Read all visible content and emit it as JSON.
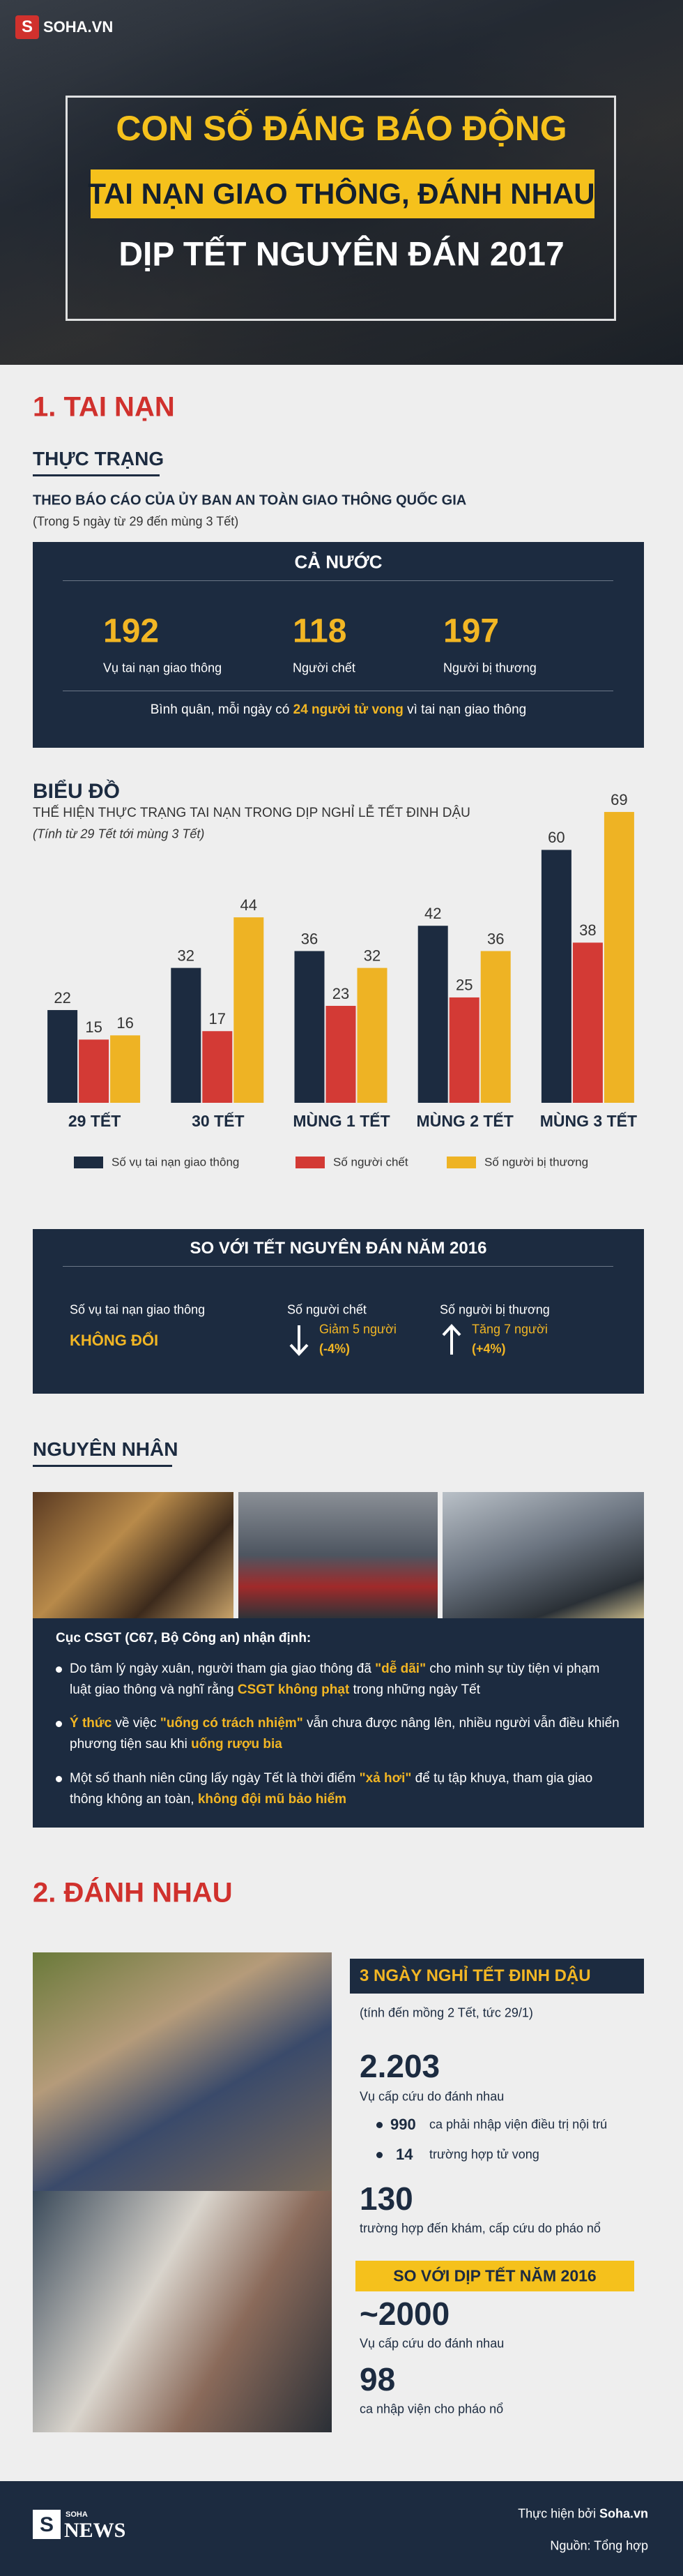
{
  "header": {
    "logo_mark": "S",
    "logo": "SOHA.VN",
    "title": "CON SỐ ĐÁNG BÁO ĐỘNG",
    "subtitle_1": "TAI NẠN GIAO THÔNG, ĐÁNH NHAU",
    "subtitle_2": "DỊP TẾT NGUYÊN ĐÁN 2017"
  },
  "section_1": {
    "heading": "1. TAI NẠN",
    "status_heading": "THỰC TRẠNG",
    "source": "THEO BÁO CÁO CỦA ỦY BAN AN TOÀN GIAO THÔNG QUỐC GIA",
    "period": "(Trong 5 ngày từ 29 đến mùng 3 Tết)",
    "nationwide": {
      "title": "CẢ NƯỚC",
      "stats": [
        {
          "value": "192",
          "label": "Vụ tai nạn giao thông"
        },
        {
          "value": "118",
          "label": "Người chết"
        },
        {
          "value": "197",
          "label": "Người bị thương"
        }
      ],
      "note": [
        {
          "text": "Bình quân, mỗi ngày có "
        },
        {
          "text": "24 người tử vong",
          "highlight": true
        },
        {
          "text": " vì tai nạn giao thông"
        }
      ]
    },
    "comparison": {
      "title": "SO VỚI TẾT NGUYÊN ĐÁN NĂM 2016",
      "items": [
        {
          "label": "Số vụ tai nạn giao thông",
          "change": "KHÔNG ĐỔI"
        },
        {
          "label": "Số người chết",
          "direction": "down",
          "change": "Giảm 5 người",
          "percent": "(-4%)"
        },
        {
          "label": "Số người bị thương",
          "direction": "up",
          "change": "Tăng 7 người",
          "percent": "(+4%)"
        }
      ]
    },
    "causes": {
      "heading": "NGUYÊN NHÂN",
      "intro": "Cục CSGT (C67, Bộ Công an) nhận định:",
      "bullets": [
        [
          {
            "text": "Do tâm lý ngày xuân, người tham gia giao thông đã "
          },
          {
            "text": "\"dễ dãi\"",
            "highlight": true
          },
          {
            "text": " cho mình sự tùy tiện vi phạm luật giao thông và nghĩ rằng "
          },
          {
            "text": "CSGT không phạt",
            "highlight": true
          },
          {
            "text": " trong những ngày Tết"
          }
        ],
        [
          {
            "text": "Ý thức",
            "highlight": true
          },
          {
            "text": " về việc "
          },
          {
            "text": "\"uống có trách nhiệm\"",
            "highlight": true
          },
          {
            "text": " vẫn chưa được nâng lên, nhiều người vẫn điều khiển phương tiện sau khi "
          },
          {
            "text": "uống rượu bia",
            "highlight": true
          }
        ],
        [
          {
            "text": "Một số thanh niên cũng lấy ngày Tết là thời điểm "
          },
          {
            "text": "\"xả hơi\"",
            "highlight": true
          },
          {
            "text": " để tụ tập khuya, tham gia giao thông không an toàn, "
          },
          {
            "text": "không đội mũ bảo hiểm",
            "highlight": true
          }
        ]
      ]
    }
  },
  "chart_data": {
    "type": "bar",
    "title": "BIỂU ĐỒ",
    "subtitle": "THẾ HIỆN THỰC TRẠNG TAI NẠN TRONG DỊP NGHỈ LỄ TẾT ĐINH DẬU",
    "note": "(Tính từ 29 Tết tới mùng 3 Tết)",
    "categories": [
      "29 TẾT",
      "30 TẾT",
      "MÙNG 1 TẾT",
      "MÙNG 2 TẾT",
      "MÙNG 3 TẾT"
    ],
    "series": [
      {
        "name": "Số vụ tai nạn giao thông",
        "color": "#1c2b40",
        "values": [
          22,
          32,
          36,
          42,
          60
        ]
      },
      {
        "name": "Số người chết",
        "color": "#d33a35",
        "values": [
          15,
          17,
          23,
          25,
          38
        ]
      },
      {
        "name": "Số người bị thương",
        "color": "#eeb324",
        "values": [
          16,
          44,
          32,
          36,
          69
        ]
      }
    ],
    "ylim": [
      0,
      70
    ],
    "legend": "bottom"
  },
  "section_2": {
    "heading": "2. ĐÁNH NHAU",
    "period_title": "3 NGÀY NGHỈ TẾT ĐINH DẬU",
    "period_note": "(tính đến mồng 2 Tết, tức 29/1)",
    "fights": {
      "value": "2.203",
      "label": "Vụ cấp cứu do đánh nhau"
    },
    "breakdown": [
      {
        "value": "990",
        "label": "ca phải nhập viện điều trị nội trú"
      },
      {
        "value": "14",
        "label": "trường hợp tử vong"
      }
    ],
    "fireworks": {
      "value": "130",
      "label": "trường hợp đến khám, cấp cứu do pháo nổ"
    },
    "comparison_title": "SO VỚI DỊP TẾT NĂM 2016",
    "comparison": [
      {
        "value": "~2000",
        "label": "Vụ cấp cứu do đánh nhau"
      },
      {
        "value": "98",
        "label": "ca nhập viện cho pháo nổ"
      }
    ]
  },
  "footer": {
    "logo_mark": "S",
    "logo_top": "SOHA",
    "logo_bottom": "NEWS",
    "credit_prefix": "Thực hiện bởi ",
    "credit_site": "Soha.vn",
    "source": "Nguồn: Tổng hợp"
  }
}
